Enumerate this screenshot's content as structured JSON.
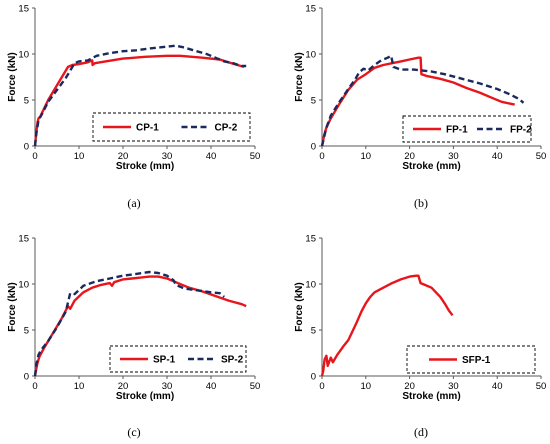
{
  "colors": {
    "series1": "#e8161c",
    "series2": "#1b2a5e",
    "axis": "#595959",
    "legend_border": "#000000"
  },
  "chart_data": [
    {
      "type": "line",
      "caption": "(a)",
      "xlabel": "Stroke (mm)",
      "ylabel": "Force (kN)",
      "xlim": [
        0,
        50
      ],
      "ylim": [
        0,
        15
      ],
      "xticks": [
        0,
        10,
        20,
        30,
        40,
        50
      ],
      "yticks": [
        0,
        5,
        10,
        15
      ],
      "grid": false,
      "legend_position": "bottom-right",
      "series": [
        {
          "name": "CP-1",
          "style": "solid",
          "points": [
            [
              0,
              0
            ],
            [
              0.3,
              1.5
            ],
            [
              0.6,
              2.6
            ],
            [
              0.8,
              3.0
            ],
            [
              1.2,
              3.2
            ],
            [
              1.6,
              3.6
            ],
            [
              3,
              5.0
            ],
            [
              5,
              6.6
            ],
            [
              6.5,
              7.8
            ],
            [
              7.5,
              8.6
            ],
            [
              8.5,
              8.8
            ],
            [
              10,
              8.9
            ],
            [
              12,
              9.1
            ],
            [
              13,
              9.3
            ],
            [
              13.1,
              8.8
            ],
            [
              13.6,
              9.0
            ],
            [
              16,
              9.2
            ],
            [
              20,
              9.5
            ],
            [
              25,
              9.7
            ],
            [
              30,
              9.8
            ],
            [
              33,
              9.8
            ],
            [
              38,
              9.6
            ],
            [
              42,
              9.4
            ],
            [
              44,
              9.1
            ],
            [
              46,
              8.8
            ],
            [
              47.5,
              8.6
            ]
          ]
        },
        {
          "name": "CP-2",
          "style": "dashed",
          "points": [
            [
              0,
              0
            ],
            [
              0.3,
              1.3
            ],
            [
              0.8,
              2.8
            ],
            [
              1.5,
              3.4
            ],
            [
              3,
              4.8
            ],
            [
              5,
              6.1
            ],
            [
              7,
              7.4
            ],
            [
              8,
              8.2
            ],
            [
              9,
              9.0
            ],
            [
              10,
              9.2
            ],
            [
              12,
              9.3
            ],
            [
              14,
              9.8
            ],
            [
              17,
              10.1
            ],
            [
              20,
              10.3
            ],
            [
              23,
              10.4
            ],
            [
              26,
              10.6
            ],
            [
              30,
              10.8
            ],
            [
              32,
              10.9
            ],
            [
              34,
              10.7
            ],
            [
              36,
              10.4
            ],
            [
              39,
              10.0
            ],
            [
              41,
              9.6
            ],
            [
              43,
              9.2
            ],
            [
              45,
              9.0
            ],
            [
              47,
              8.7
            ],
            [
              48,
              8.7
            ]
          ]
        }
      ]
    },
    {
      "type": "line",
      "caption": "(b)",
      "xlabel": "Stroke (mm)",
      "ylabel": "Force (kN)",
      "xlim": [
        0,
        50
      ],
      "ylim": [
        0,
        15
      ],
      "xticks": [
        0,
        10,
        20,
        30,
        40,
        50
      ],
      "yticks": [
        0,
        5,
        10,
        15
      ],
      "grid": false,
      "legend_position": "bottom-right",
      "series": [
        {
          "name": "FP-1",
          "style": "solid",
          "points": [
            [
              0,
              0
            ],
            [
              0.5,
              1.2
            ],
            [
              1,
              2.0
            ],
            [
              2,
              3.0
            ],
            [
              4,
              4.6
            ],
            [
              6,
              6.1
            ],
            [
              8,
              7.2
            ],
            [
              10,
              7.8
            ],
            [
              12,
              8.5
            ],
            [
              14,
              8.8
            ],
            [
              16,
              9.0
            ],
            [
              18,
              9.2
            ],
            [
              20,
              9.4
            ],
            [
              22,
              9.6
            ],
            [
              22.5,
              9.6
            ],
            [
              22.7,
              7.8
            ],
            [
              24,
              7.6
            ],
            [
              27,
              7.3
            ],
            [
              30,
              6.9
            ],
            [
              33,
              6.3
            ],
            [
              36,
              5.8
            ],
            [
              39,
              5.2
            ],
            [
              41,
              4.8
            ],
            [
              43,
              4.6
            ],
            [
              44,
              4.5
            ]
          ]
        },
        {
          "name": "FP-2",
          "style": "dashed",
          "points": [
            [
              0,
              0
            ],
            [
              0.5,
              1.0
            ],
            [
              1,
              2.0
            ],
            [
              2,
              3.3
            ],
            [
              4,
              4.8
            ],
            [
              6,
              6.2
            ],
            [
              7.5,
              7.2
            ],
            [
              8.5,
              8.0
            ],
            [
              9.5,
              8.4
            ],
            [
              10.5,
              8.2
            ],
            [
              12,
              8.8
            ],
            [
              13.5,
              9.3
            ],
            [
              15,
              9.6
            ],
            [
              15.8,
              9.8
            ],
            [
              16.3,
              8.6
            ],
            [
              18,
              8.3
            ],
            [
              21,
              8.3
            ],
            [
              25,
              8.1
            ],
            [
              28,
              7.8
            ],
            [
              32,
              7.3
            ],
            [
              36,
              6.8
            ],
            [
              40,
              6.2
            ],
            [
              43,
              5.6
            ],
            [
              45,
              5.1
            ],
            [
              46,
              4.7
            ]
          ]
        }
      ]
    },
    {
      "type": "line",
      "caption": "(c)",
      "xlabel": "Stroke (mm)",
      "ylabel": "Force (kN)",
      "xlim": [
        0,
        50
      ],
      "ylim": [
        0,
        15
      ],
      "xticks": [
        0,
        10,
        20,
        30,
        40,
        50
      ],
      "yticks": [
        0,
        5,
        10,
        15
      ],
      "grid": false,
      "legend_position": "bottom-right",
      "series": [
        {
          "name": "SP-1",
          "style": "solid",
          "points": [
            [
              0,
              0
            ],
            [
              0.5,
              1.3
            ],
            [
              1,
              2.1
            ],
            [
              2,
              3.0
            ],
            [
              4,
              4.6
            ],
            [
              6,
              6.2
            ],
            [
              7.5,
              7.6
            ],
            [
              8,
              7.3
            ],
            [
              9,
              8.2
            ],
            [
              11,
              9.1
            ],
            [
              13,
              9.6
            ],
            [
              15,
              9.9
            ],
            [
              17,
              10.1
            ],
            [
              17.5,
              9.8
            ],
            [
              18,
              10.2
            ],
            [
              20,
              10.5
            ],
            [
              22,
              10.6
            ],
            [
              24,
              10.7
            ],
            [
              26,
              10.8
            ],
            [
              28,
              10.8
            ],
            [
              30,
              10.6
            ],
            [
              32,
              10.2
            ],
            [
              35,
              9.6
            ],
            [
              38,
              9.2
            ],
            [
              41,
              8.7
            ],
            [
              44,
              8.2
            ],
            [
              47,
              7.8
            ],
            [
              48,
              7.6
            ]
          ]
        },
        {
          "name": "SP-2",
          "style": "dashed",
          "points": [
            [
              0,
              0
            ],
            [
              0.3,
              1.2
            ],
            [
              0.8,
              2.3
            ],
            [
              1.5,
              2.9
            ],
            [
              3,
              3.8
            ],
            [
              5,
              5.3
            ],
            [
              7,
              7.0
            ],
            [
              8,
              9.0
            ],
            [
              9,
              8.9
            ],
            [
              11,
              9.8
            ],
            [
              14,
              10.3
            ],
            [
              17,
              10.6
            ],
            [
              20,
              10.9
            ],
            [
              23,
              11.1
            ],
            [
              26,
              11.3
            ],
            [
              28,
              11.2
            ],
            [
              30,
              10.9
            ],
            [
              31.5,
              10.4
            ],
            [
              32,
              9.9
            ],
            [
              34,
              9.5
            ],
            [
              37,
              9.3
            ],
            [
              40,
              9.1
            ],
            [
              42,
              9.0
            ],
            [
              43,
              8.6
            ]
          ]
        }
      ]
    },
    {
      "type": "line",
      "caption": "(d)",
      "xlabel": "Stroke (mm)",
      "ylabel": "Force (kN)",
      "xlim": [
        0,
        50
      ],
      "ylim": [
        0,
        15
      ],
      "xticks": [
        0,
        10,
        20,
        30,
        40,
        50
      ],
      "yticks": [
        0,
        5,
        10,
        15
      ],
      "grid": false,
      "legend_position": "bottom-right",
      "series": [
        {
          "name": "SFP-1",
          "style": "solid",
          "points": [
            [
              0,
              0
            ],
            [
              0.3,
              0.6
            ],
            [
              0.6,
              1.8
            ],
            [
              1.0,
              2.2
            ],
            [
              1.3,
              1.1
            ],
            [
              1.6,
              1.5
            ],
            [
              2.0,
              2.0
            ],
            [
              2.5,
              1.5
            ],
            [
              3.5,
              2.3
            ],
            [
              5,
              3.3
            ],
            [
              6,
              3.9
            ],
            [
              7,
              4.9
            ],
            [
              8,
              5.9
            ],
            [
              9,
              7.0
            ],
            [
              10,
              7.9
            ],
            [
              11,
              8.6
            ],
            [
              12,
              9.1
            ],
            [
              14,
              9.6
            ],
            [
              16,
              10.1
            ],
            [
              18,
              10.5
            ],
            [
              20,
              10.8
            ],
            [
              21.5,
              10.9
            ],
            [
              22,
              10.9
            ],
            [
              22.5,
              10.1
            ],
            [
              23.5,
              9.9
            ],
            [
              25,
              9.6
            ],
            [
              26,
              9.1
            ],
            [
              27,
              8.6
            ],
            [
              28,
              7.9
            ],
            [
              29,
              7.1
            ],
            [
              29.8,
              6.6
            ]
          ]
        }
      ]
    }
  ]
}
